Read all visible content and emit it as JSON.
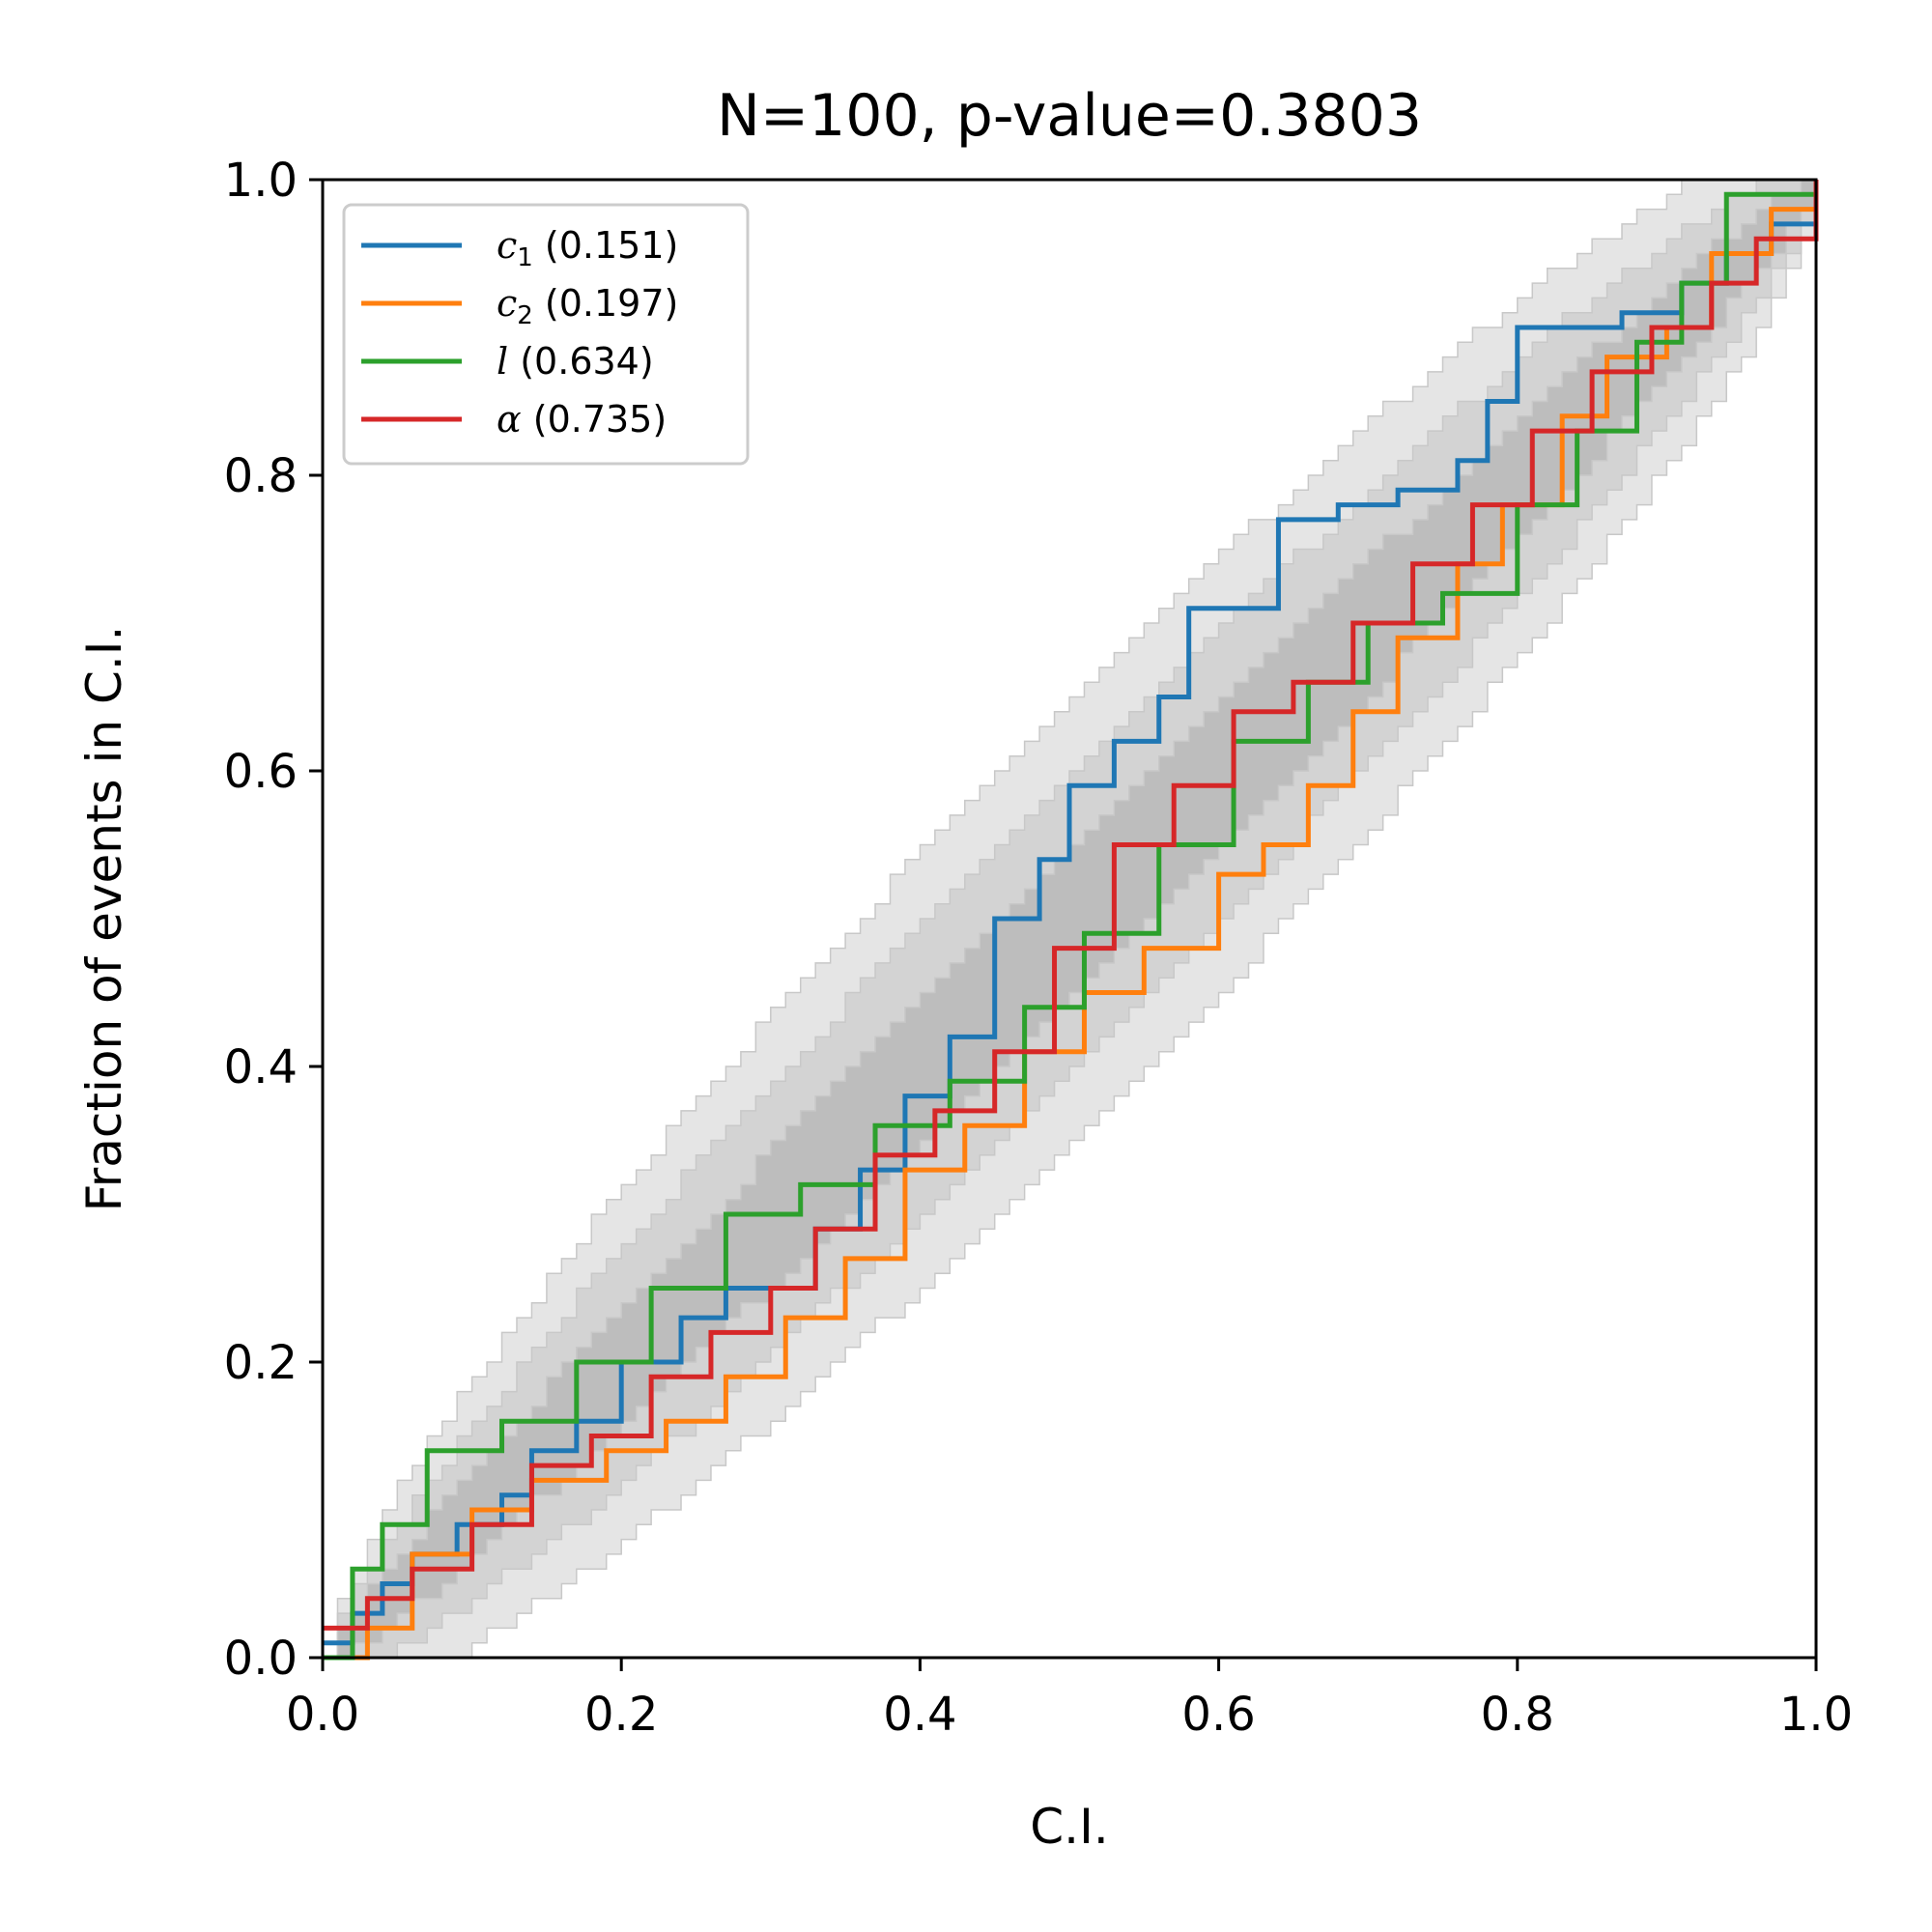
{
  "chart_data": {
    "type": "line",
    "title": "N=100, p-value=0.3803",
    "xlabel": "C.I.",
    "ylabel": "Fraction of events in C.I.",
    "xlim": [
      0,
      1
    ],
    "ylim": [
      0,
      1
    ],
    "xticks": [
      "0.0",
      "0.2",
      "0.4",
      "0.6",
      "0.8",
      "1.0"
    ],
    "yticks": [
      "0.0",
      "0.2",
      "0.4",
      "0.6",
      "0.8",
      "1.0"
    ],
    "grid": false,
    "legend_position": "top-left",
    "confidence_bands": {
      "n": 100,
      "levels": [
        "1-sigma",
        "2-sigma",
        "3-sigma"
      ],
      "colors": [
        "#bdbdbd",
        "#d3d3d3",
        "#e5e5e5"
      ]
    },
    "series": [
      {
        "name": "c1",
        "symbol": "c",
        "subscript": "1",
        "pvalue": "(0.151)",
        "color": "#1f77b4",
        "points": [
          [
            0,
            0.01
          ],
          [
            0.02,
            0.03
          ],
          [
            0.04,
            0.05
          ],
          [
            0.06,
            0.07
          ],
          [
            0.09,
            0.09
          ],
          [
            0.12,
            0.11
          ],
          [
            0.14,
            0.14
          ],
          [
            0.17,
            0.16
          ],
          [
            0.2,
            0.2
          ],
          [
            0.24,
            0.23
          ],
          [
            0.27,
            0.25
          ],
          [
            0.3,
            0.25
          ],
          [
            0.33,
            0.29
          ],
          [
            0.36,
            0.33
          ],
          [
            0.39,
            0.38
          ],
          [
            0.42,
            0.42
          ],
          [
            0.45,
            0.5
          ],
          [
            0.48,
            0.54
          ],
          [
            0.5,
            0.59
          ],
          [
            0.53,
            0.62
          ],
          [
            0.56,
            0.65
          ],
          [
            0.58,
            0.71
          ],
          [
            0.61,
            0.71
          ],
          [
            0.64,
            0.77
          ],
          [
            0.68,
            0.78
          ],
          [
            0.72,
            0.79
          ],
          [
            0.76,
            0.81
          ],
          [
            0.78,
            0.85
          ],
          [
            0.8,
            0.9
          ],
          [
            0.87,
            0.91
          ],
          [
            0.91,
            0.93
          ],
          [
            0.94,
            0.95
          ],
          [
            0.97,
            0.97
          ],
          [
            1,
            1
          ]
        ]
      },
      {
        "name": "c2",
        "symbol": "c",
        "subscript": "2",
        "pvalue": "(0.197)",
        "color": "#ff7f0e",
        "points": [
          [
            0,
            0
          ],
          [
            0.03,
            0.02
          ],
          [
            0.06,
            0.07
          ],
          [
            0.1,
            0.1
          ],
          [
            0.14,
            0.12
          ],
          [
            0.19,
            0.14
          ],
          [
            0.23,
            0.16
          ],
          [
            0.27,
            0.19
          ],
          [
            0.31,
            0.23
          ],
          [
            0.35,
            0.27
          ],
          [
            0.39,
            0.33
          ],
          [
            0.43,
            0.36
          ],
          [
            0.47,
            0.41
          ],
          [
            0.51,
            0.45
          ],
          [
            0.55,
            0.48
          ],
          [
            0.6,
            0.53
          ],
          [
            0.63,
            0.55
          ],
          [
            0.66,
            0.59
          ],
          [
            0.69,
            0.64
          ],
          [
            0.72,
            0.69
          ],
          [
            0.76,
            0.74
          ],
          [
            0.79,
            0.78
          ],
          [
            0.83,
            0.84
          ],
          [
            0.86,
            0.88
          ],
          [
            0.9,
            0.9
          ],
          [
            0.93,
            0.95
          ],
          [
            0.97,
            0.98
          ],
          [
            1,
            1
          ]
        ]
      },
      {
        "name": "l",
        "symbol": "l",
        "subscript": "",
        "pvalue": "(0.634)",
        "color": "#2ca02c",
        "points": [
          [
            0,
            0
          ],
          [
            0.02,
            0.06
          ],
          [
            0.04,
            0.09
          ],
          [
            0.07,
            0.14
          ],
          [
            0.12,
            0.16
          ],
          [
            0.17,
            0.2
          ],
          [
            0.22,
            0.25
          ],
          [
            0.27,
            0.3
          ],
          [
            0.32,
            0.32
          ],
          [
            0.37,
            0.36
          ],
          [
            0.42,
            0.39
          ],
          [
            0.47,
            0.44
          ],
          [
            0.51,
            0.49
          ],
          [
            0.56,
            0.55
          ],
          [
            0.61,
            0.62
          ],
          [
            0.66,
            0.66
          ],
          [
            0.7,
            0.7
          ],
          [
            0.75,
            0.72
          ],
          [
            0.8,
            0.78
          ],
          [
            0.84,
            0.83
          ],
          [
            0.88,
            0.89
          ],
          [
            0.91,
            0.93
          ],
          [
            0.94,
            0.99
          ],
          [
            1,
            1
          ]
        ]
      },
      {
        "name": "alpha",
        "symbol": "α",
        "subscript": "",
        "pvalue": "(0.735)",
        "color": "#d62728",
        "points": [
          [
            0,
            0.02
          ],
          [
            0.03,
            0.04
          ],
          [
            0.06,
            0.06
          ],
          [
            0.1,
            0.09
          ],
          [
            0.14,
            0.13
          ],
          [
            0.18,
            0.15
          ],
          [
            0.22,
            0.19
          ],
          [
            0.26,
            0.22
          ],
          [
            0.3,
            0.25
          ],
          [
            0.33,
            0.29
          ],
          [
            0.37,
            0.34
          ],
          [
            0.41,
            0.37
          ],
          [
            0.45,
            0.41
          ],
          [
            0.49,
            0.48
          ],
          [
            0.53,
            0.55
          ],
          [
            0.57,
            0.59
          ],
          [
            0.61,
            0.64
          ],
          [
            0.65,
            0.66
          ],
          [
            0.69,
            0.7
          ],
          [
            0.73,
            0.74
          ],
          [
            0.77,
            0.78
          ],
          [
            0.81,
            0.83
          ],
          [
            0.85,
            0.87
          ],
          [
            0.89,
            0.9
          ],
          [
            0.93,
            0.93
          ],
          [
            0.96,
            0.96
          ],
          [
            1,
            1
          ]
        ]
      }
    ]
  }
}
